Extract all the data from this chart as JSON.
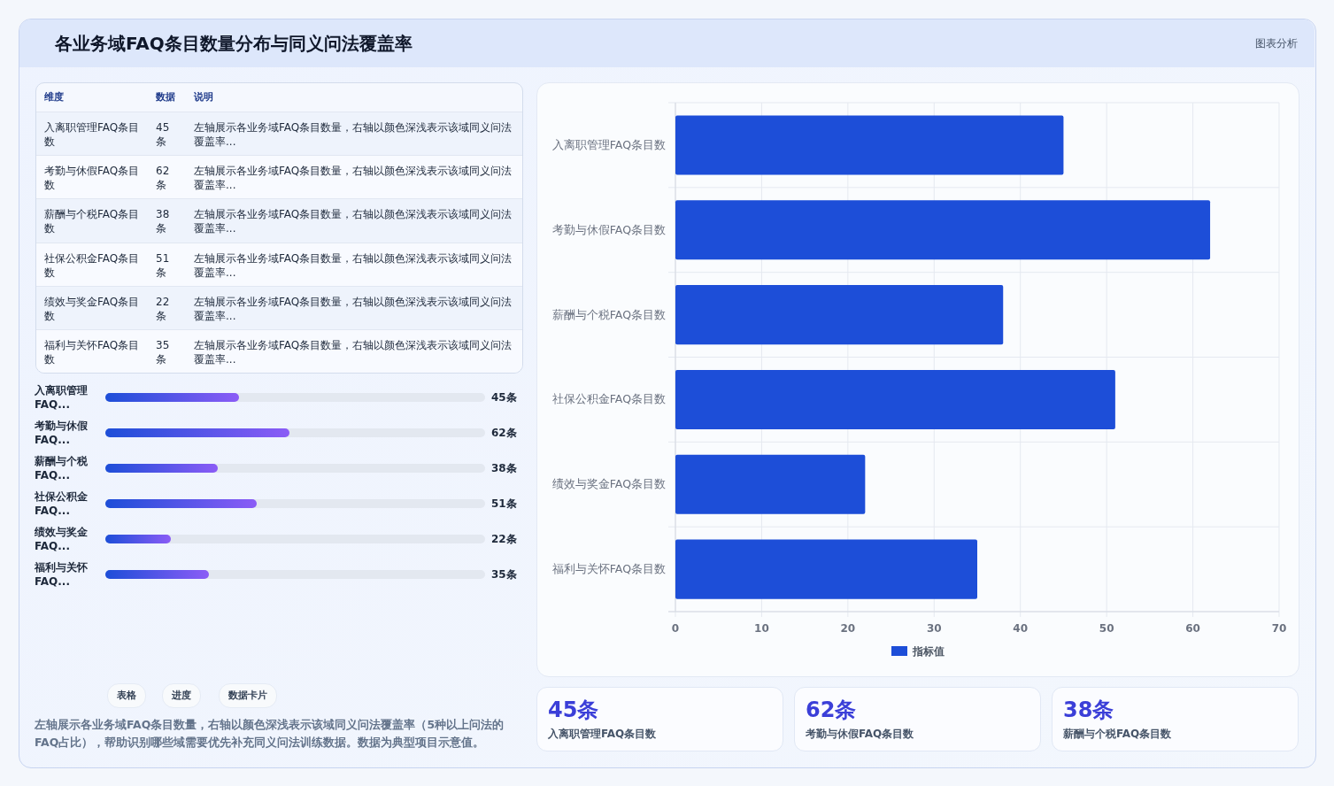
{
  "chart_data": [
    {
      "type": "other",
      "title": "各业务域FAQ条目数量分布与同义问法覆盖率",
      "annotations": [
        "图表分析"
      ]
    },
    {
      "type": "other",
      "categories": [
        "入离职管理FAQ条目数",
        "考勤与休假FAQ条目数",
        "薪酬与个税FAQ条目数",
        "社保公积金FAQ条目数",
        "绩效与奖金FAQ条目数",
        "福利与关怀FAQ条目数"
      ],
      "values": [
        45,
        62,
        38,
        51,
        22,
        35
      ],
      "value_labels": [
        "45条",
        "62条",
        "38条",
        "51条",
        "22条",
        "35条"
      ],
      "annotations": [
        "维度",
        "数据",
        "说明",
        "左轴展示各业务域FAQ条目数量，右轴以颜色深浅表示该域同义问法覆盖率...",
        "左轴展示各业务域FAQ条目数量，右轴以颜色深浅表示该域同义问法覆盖率...",
        "左轴展示各业务域FAQ条目数量，右轴以颜色深浅表示该域同义问法覆盖率...",
        "左轴展示各业务域FAQ条目数量，右轴以颜色深浅表示该域同义问法覆盖率...",
        "左轴展示各业务域FAQ条目数量，右轴以颜色深浅表示该域同义问法覆盖率...",
        "左轴展示各业务域FAQ条目数量，右轴以颜色深浅表示该域同义问法覆盖率..."
      ]
    },
    {
      "type": "bar",
      "orientation": "horizontal",
      "categories": [
        "入离职管理FAQ...",
        "考勤与休假FAQ...",
        "薪酬与个税FAQ...",
        "社保公积金FAQ...",
        "绩效与奖金FAQ...",
        "福利与关怀FAQ..."
      ],
      "values": [
        45,
        62,
        38,
        51,
        22,
        35
      ],
      "value_labels": [
        "45条",
        "62条",
        "38条",
        "51条",
        "22条",
        "35条"
      ],
      "color": "#1d4ed8",
      "xlim": [
        0,
        128
      ]
    },
    {
      "type": "other",
      "annotations": [
        "表格",
        "进度",
        "数据卡片",
        "左轴展示各业务域FAQ条目数量，右轴以颜色深浅表示该域同义问法覆盖率（5种以上问法的FAQ占比），帮助识别哪些域需要优先补充同义问法训练数据。数据为典型项目示意值。"
      ]
    },
    {
      "type": "bar",
      "orientation": "horizontal",
      "categories": [
        "入离职管理FAQ条目数",
        "考勤与休假FAQ条目数",
        "薪酬与个税FAQ条目数",
        "社保公积金FAQ条目数",
        "绩效与奖金FAQ条目数",
        "福利与关怀FAQ条目数"
      ],
      "series": [
        {
          "name": "指标值",
          "color": "#1d4ed8",
          "values": [
            45,
            62,
            38,
            51,
            22,
            35
          ]
        }
      ],
      "xlim": [
        0,
        70
      ],
      "xticks": [
        0,
        10,
        20,
        30,
        40,
        50,
        60,
        70
      ],
      "grid": true,
      "legend": "bottom"
    },
    {
      "type": "other",
      "categories": [
        "入离职管理FAQ条目数",
        "考勤与休假FAQ条目数",
        "薪酬与个税FAQ条目数"
      ],
      "values": [
        45,
        62,
        38
      ],
      "value_labels": [
        "45条",
        "62条",
        "38条"
      ]
    }
  ]
}
